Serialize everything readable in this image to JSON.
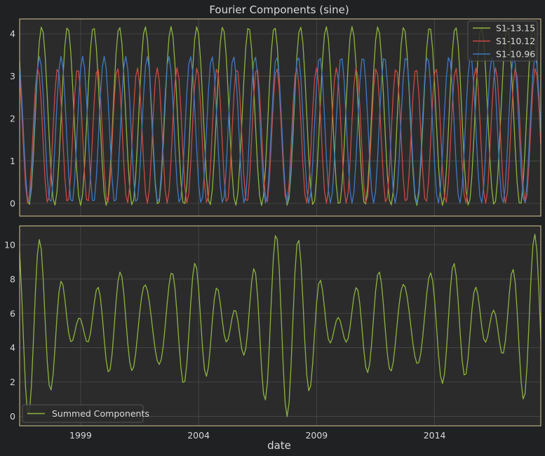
{
  "colors": {
    "figure_bg": "#1f2123",
    "axes_bg": "#2b2b2b",
    "frame": "#d8c690",
    "grid": "#4a4a4a",
    "text": "#d9d9d9",
    "green": "#8cb33f",
    "red": "#c94a43",
    "blue": "#3f79c4"
  },
  "chart_data": [
    {
      "type": "line",
      "title": "Fourier Components (sine)",
      "xlabel": "",
      "ylabel": "",
      "x_range": [
        "1996-06-01",
        "2018-07-01"
      ],
      "ylim": [
        -0.3,
        4.35
      ],
      "yticks": [
        0,
        1,
        2,
        3,
        4
      ],
      "xticks": [],
      "grid": true,
      "legend": "top-right",
      "series": [
        {
          "name": "S1-13.15",
          "color_key": "green",
          "min": -0.05,
          "max": 4.17,
          "period_months": 13.15,
          "phase_months": -5.2
        },
        {
          "name": "S1-10.12",
          "color_key": "red",
          "min": 0.0,
          "max": 3.2,
          "period_months": 10.12,
          "phase_months": -3.4
        },
        {
          "name": "S1-10.96",
          "color_key": "blue",
          "min": 0.0,
          "max": 3.47,
          "period_months": 10.96,
          "phase_months": -3.6
        }
      ]
    },
    {
      "type": "line",
      "title": "",
      "xlabel": "date",
      "ylabel": "",
      "x_range": [
        "1996-06-01",
        "2018-07-01"
      ],
      "ylim": [
        -0.55,
        11.1
      ],
      "yticks": [
        0,
        2,
        4,
        6,
        8,
        10
      ],
      "xticks": [
        "1999",
        "2004",
        "2009",
        "2014"
      ],
      "grid": true,
      "legend": "bottom-left",
      "series": [
        {
          "name": "Summed Components",
          "color_key": "green",
          "derived": "sum of the three Fourier components"
        }
      ]
    }
  ]
}
